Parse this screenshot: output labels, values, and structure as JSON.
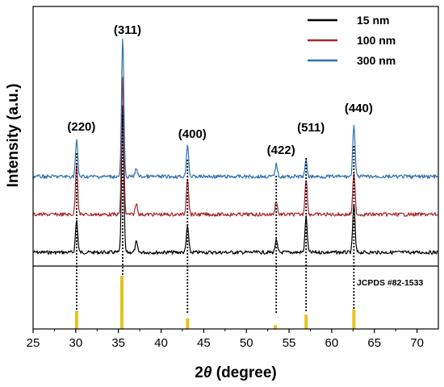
{
  "chart_data": {
    "type": "line",
    "xlabel_prefix": "2",
    "xlabel_symbol": "θ",
    "xlabel_suffix": " (degree)",
    "ylabel": "Intensity (a.u.)",
    "xlim": [
      25,
      72.5
    ],
    "x_ticks": [
      25,
      30,
      35,
      40,
      45,
      50,
      55,
      60,
      65,
      70
    ],
    "grid": false,
    "legend_position": "top-right",
    "series": [
      {
        "name": "15 nm",
        "color": "#000000",
        "peaks": [
          {
            "x": 30.1,
            "intensity": 0.22
          },
          {
            "x": 35.5,
            "intensity": 1.0
          },
          {
            "x": 37.1,
            "intensity": 0.07
          },
          {
            "x": 43.1,
            "intensity": 0.18
          },
          {
            "x": 53.5,
            "intensity": 0.08
          },
          {
            "x": 57.0,
            "intensity": 0.24
          },
          {
            "x": 62.6,
            "intensity": 0.33
          }
        ]
      },
      {
        "name": "100 nm",
        "color": "#a4282f",
        "peaks": [
          {
            "x": 30.1,
            "intensity": 0.37
          },
          {
            "x": 35.5,
            "intensity": 1.0
          },
          {
            "x": 37.1,
            "intensity": 0.08
          },
          {
            "x": 43.1,
            "intensity": 0.27
          },
          {
            "x": 53.5,
            "intensity": 0.1
          },
          {
            "x": 57.0,
            "intensity": 0.26
          },
          {
            "x": 62.6,
            "intensity": 0.3
          }
        ]
      },
      {
        "name": "300 nm",
        "color": "#3071b4",
        "peaks": [
          {
            "x": 30.1,
            "intensity": 0.26
          },
          {
            "x": 35.5,
            "intensity": 1.0
          },
          {
            "x": 37.1,
            "intensity": 0.06
          },
          {
            "x": 43.1,
            "intensity": 0.23
          },
          {
            "x": 53.5,
            "intensity": 0.09
          },
          {
            "x": 57.0,
            "intensity": 0.11
          },
          {
            "x": 62.6,
            "intensity": 0.38
          }
        ]
      }
    ],
    "peak_labels": [
      {
        "x": 30.1,
        "label": "(220)"
      },
      {
        "x": 35.5,
        "label": "(311)"
      },
      {
        "x": 43.1,
        "label": "(400)"
      },
      {
        "x": 53.5,
        "label": "(422)"
      },
      {
        "x": 57.0,
        "label": "(511)"
      },
      {
        "x": 62.6,
        "label": "(440)"
      }
    ],
    "reference": {
      "label": "JCPDS #82-1533",
      "color": "#e8c21c",
      "lines": [
        {
          "x": 30.1,
          "intensity": 0.33
        },
        {
          "x": 35.4,
          "intensity": 1.0
        },
        {
          "x": 43.1,
          "intensity": 0.2
        },
        {
          "x": 53.4,
          "intensity": 0.07
        },
        {
          "x": 57.0,
          "intensity": 0.27
        },
        {
          "x": 62.6,
          "intensity": 0.37
        }
      ]
    }
  }
}
